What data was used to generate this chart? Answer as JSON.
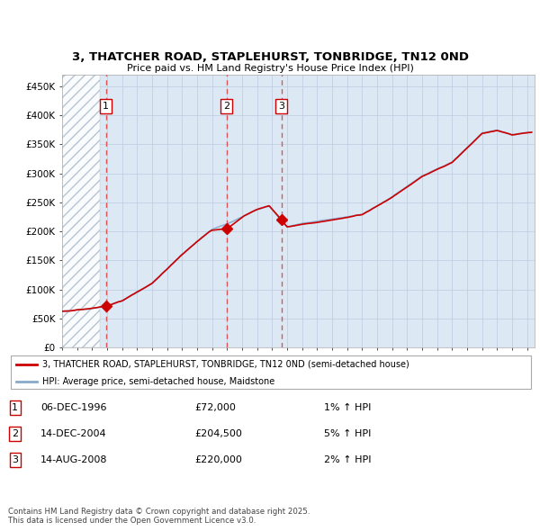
{
  "title": "3, THATCHER ROAD, STAPLEHURST, TONBRIDGE, TN12 0ND",
  "subtitle": "Price paid vs. HM Land Registry's House Price Index (HPI)",
  "xlim": [
    1994.0,
    2025.5
  ],
  "ylim": [
    0,
    470000
  ],
  "yticks": [
    0,
    50000,
    100000,
    150000,
    200000,
    250000,
    300000,
    350000,
    400000,
    450000
  ],
  "ytick_labels": [
    "£0",
    "£50K",
    "£100K",
    "£150K",
    "£200K",
    "£250K",
    "£300K",
    "£350K",
    "£400K",
    "£450K"
  ],
  "sale_dates": [
    1996.92,
    2004.95,
    2008.62
  ],
  "sale_prices": [
    72000,
    204500,
    220000
  ],
  "sale_labels": [
    "1",
    "2",
    "3"
  ],
  "legend_line1": "3, THATCHER ROAD, STAPLEHURST, TONBRIDGE, TN12 0ND (semi-detached house)",
  "legend_line2": "HPI: Average price, semi-detached house, Maidstone",
  "table_rows": [
    [
      "1",
      "06-DEC-1996",
      "£72,000",
      "1% ↑ HPI"
    ],
    [
      "2",
      "14-DEC-2004",
      "£204,500",
      "5% ↑ HPI"
    ],
    [
      "3",
      "14-AUG-2008",
      "£220,000",
      "2% ↑ HPI"
    ]
  ],
  "footnote": "Contains HM Land Registry data © Crown copyright and database right 2025.\nThis data is licensed under the Open Government Licence v3.0.",
  "line_color_red": "#cc0000",
  "line_color_blue": "#88aacc",
  "grid_color": "#bbccdd",
  "bg_color": "#dde8f5",
  "sale_vline_color": "#dd4444",
  "box_color": "#cc0000",
  "hatch_end": 1996.5
}
